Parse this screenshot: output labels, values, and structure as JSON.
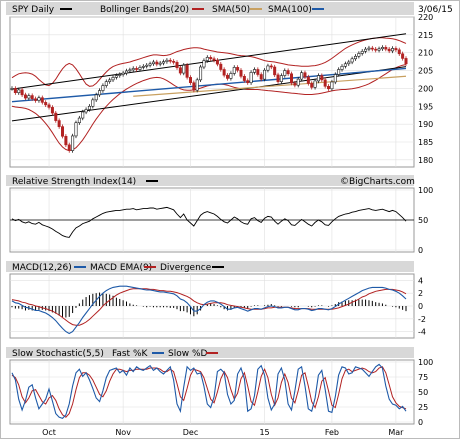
{
  "chart_data": [
    {
      "type": "line",
      "panel": "price",
      "title": "SPY Daily",
      "date": "3/06/15",
      "legend": [
        {
          "name": "Bollinger Bands(20)",
          "color": "#000000"
        },
        {
          "name": "SMA(50)",
          "color": "#b22222"
        },
        {
          "name": "SMA(100)",
          "color": "#c8a060"
        },
        {
          "name": "",
          "color": "#1e5aa8"
        }
      ],
      "ylim": [
        178,
        220
      ],
      "yticks": [
        180,
        185,
        190,
        195,
        200,
        205,
        210,
        215,
        220
      ],
      "x_labels": [
        {
          "label": "Oct",
          "i": 11
        },
        {
          "label": "Nov",
          "i": 33
        },
        {
          "label": "Dec",
          "i": 53
        },
        {
          "label": "15",
          "i": 75
        },
        {
          "label": "Feb",
          "i": 95
        },
        {
          "label": "Mar",
          "i": 114
        }
      ],
      "close": [
        200.0,
        198.8,
        199.6,
        198.2,
        197.3,
        198.0,
        197.1,
        196.6,
        197.4,
        196.1,
        195.4,
        194.7,
        193.1,
        191.0,
        189.3,
        186.6,
        184.2,
        182.6,
        186.7,
        190.4,
        191.7,
        193.4,
        194.1,
        195.0,
        196.8,
        198.2,
        199.4,
        200.8,
        201.9,
        202.4,
        203.1,
        203.6,
        203.9,
        204.3,
        204.9,
        205.2,
        205.6,
        205.3,
        205.9,
        206.2,
        206.5,
        206.9,
        207.4,
        206.8,
        207.1,
        207.5,
        207.9,
        207.6,
        207.3,
        205.8,
        204.3,
        206.5,
        203.1,
        201.6,
        199.5,
        202.4,
        206.0,
        207.8,
        208.7,
        208.3,
        207.9,
        206.8,
        205.3,
        203.7,
        202.8,
        204.2,
        205.9,
        205.1,
        203.4,
        202.2,
        201.6,
        204.5,
        205.3,
        203.9,
        202.6,
        205.1,
        206.3,
        206.0,
        203.8,
        201.9,
        203.6,
        205.0,
        204.1,
        201.5,
        200.9,
        202.6,
        204.4,
        203.2,
        201.4,
        200.3,
        202.1,
        203.6,
        202.4,
        200.6,
        199.9,
        201.8,
        203.9,
        205.3,
        206.2,
        206.9,
        207.4,
        208.3,
        209.0,
        209.8,
        210.4,
        211.0,
        211.3,
        211.0,
        210.7,
        211.1,
        211.5,
        211.0,
        210.5,
        211.2,
        210.8,
        209.7,
        208.4,
        206.9
      ],
      "bollinger_upper": [
        203.0,
        203.6,
        204.1,
        204.3,
        204.4,
        204.3,
        204.0,
        203.4,
        202.5,
        201.7,
        201.0,
        200.8,
        201.4,
        202.6,
        204.1,
        205.5,
        206.5,
        207.0,
        206.6,
        205.5,
        204.1,
        202.6,
        201.2,
        200.6,
        200.7,
        201.4,
        202.5,
        203.6,
        204.6,
        205.5,
        206.1,
        206.5,
        206.8,
        207.0,
        207.2,
        207.4,
        207.7,
        208.0,
        208.3,
        208.6,
        208.9,
        209.2,
        209.4,
        209.4,
        209.3,
        209.2,
        209.3,
        209.5,
        209.9,
        210.3,
        210.6,
        210.9,
        211.1,
        211.3,
        211.4,
        211.4,
        211.3,
        211.0,
        210.8,
        210.6,
        210.4,
        210.2,
        210.1,
        210.0,
        209.9,
        209.7,
        209.5,
        209.3,
        209.2,
        209.1,
        209.0,
        208.9,
        208.7,
        208.4,
        208.1,
        207.8,
        207.6,
        207.5,
        207.4,
        207.2,
        207.0,
        206.8,
        206.6,
        206.5,
        206.4,
        206.3,
        206.2,
        206.2,
        206.2,
        206.3,
        206.4,
        206.6,
        206.9,
        207.3,
        207.8,
        208.4,
        209.1,
        209.8,
        210.5,
        211.2,
        211.7,
        212.2,
        212.6,
        213.0,
        213.3,
        213.6,
        213.8,
        214.0,
        214.1,
        214.2,
        214.2,
        214.1,
        214.0,
        213.9,
        213.7,
        213.4,
        213.0,
        212.6
      ],
      "bollinger_lower": [
        195.0,
        194.8,
        194.7,
        194.6,
        194.4,
        194.1,
        193.6,
        193.0,
        192.2,
        191.3,
        190.2,
        189.0,
        187.6,
        186.1,
        184.7,
        183.6,
        182.9,
        182.6,
        182.8,
        183.4,
        184.4,
        185.6,
        187.0,
        188.5,
        190.0,
        191.4,
        192.7,
        193.9,
        195.0,
        196.0,
        196.9,
        197.7,
        198.5,
        199.2,
        199.8,
        200.4,
        200.9,
        201.4,
        201.8,
        202.2,
        202.5,
        202.8,
        203.0,
        203.1,
        203.0,
        202.7,
        202.2,
        201.6,
        201.0,
        200.4,
        199.9,
        199.6,
        199.5,
        199.5,
        199.6,
        199.8,
        200.1,
        200.4,
        200.7,
        200.9,
        201.1,
        201.2,
        201.2,
        201.1,
        200.9,
        200.6,
        200.3,
        200.1,
        199.9,
        199.8,
        199.7,
        199.7,
        199.7,
        199.7,
        199.6,
        199.5,
        199.4,
        199.3,
        199.2,
        199.1,
        199.0,
        198.9,
        198.8,
        198.7,
        198.6,
        198.5,
        198.4,
        198.3,
        198.3,
        198.3,
        198.4,
        198.5,
        198.7,
        198.9,
        199.1,
        199.3,
        199.5,
        199.6,
        199.7,
        199.7,
        199.8,
        199.9,
        200.1,
        200.3,
        200.6,
        200.9,
        201.3,
        201.8,
        202.3,
        202.9,
        203.5,
        204.1,
        204.7,
        205.3,
        205.8,
        206.2,
        206.5,
        206.7
      ],
      "upper_channel": [
        [
          0,
          199.8
        ],
        [
          117,
          215.3
        ]
      ],
      "lower_channel": [
        [
          0,
          190.9
        ],
        [
          117,
          206.1
        ]
      ],
      "trend_line": [
        [
          0,
          196.3
        ],
        [
          117,
          205.6
        ]
      ],
      "support_line": [
        [
          36,
          197.8
        ],
        [
          117,
          203.4
        ]
      ],
      "volume_band": {
        "ylim": [
          178,
          220
        ]
      }
    },
    {
      "type": "line",
      "panel": "rsi",
      "title": "Relative Strength Index(14)",
      "watermark": "©BigCharts.com",
      "ylim": [
        0,
        100
      ],
      "yticks": [
        0,
        50,
        100
      ],
      "reference": 50,
      "series": [
        {
          "name": "",
          "color": "#000000",
          "values": [
            52,
            49,
            51,
            47,
            45,
            47,
            44,
            43,
            46,
            42,
            40,
            38,
            35,
            31,
            28,
            24,
            22,
            21,
            30,
            37,
            40,
            44,
            46,
            48,
            52,
            55,
            58,
            61,
            63,
            64,
            65,
            66,
            66,
            67,
            68,
            68,
            69,
            67,
            68,
            69,
            69,
            70,
            70,
            68,
            69,
            70,
            71,
            69,
            67,
            60,
            54,
            60,
            50,
            45,
            40,
            49,
            58,
            62,
            64,
            62,
            60,
            56,
            51,
            47,
            45,
            50,
            55,
            52,
            47,
            44,
            43,
            52,
            54,
            49,
            46,
            53,
            56,
            55,
            48,
            43,
            48,
            52,
            49,
            42,
            41,
            46,
            51,
            47,
            43,
            40,
            46,
            50,
            47,
            42,
            41,
            47,
            52,
            56,
            58,
            60,
            61,
            63,
            64,
            66,
            67,
            68,
            69,
            67,
            66,
            67,
            68,
            66,
            64,
            66,
            64,
            59,
            54,
            48
          ]
        }
      ]
    },
    {
      "type": "bar",
      "panel": "macd",
      "title": "",
      "legend": [
        {
          "name": "MACD(12,26)",
          "color": "#1e5aa8"
        },
        {
          "name": "MACD EMA(9)",
          "color": "#b22222"
        },
        {
          "name": "Divergence",
          "color": "#000000"
        }
      ],
      "ylim": [
        -5,
        5
      ],
      "yticks": [
        -4,
        -2,
        0,
        2,
        4
      ],
      "series": [
        {
          "name": "MACD(12,26)",
          "values": [
            0.8,
            0.5,
            0.4,
            0.1,
            -0.2,
            -0.3,
            -0.5,
            -0.7,
            -0.7,
            -0.9,
            -1.1,
            -1.4,
            -1.8,
            -2.3,
            -2.9,
            -3.5,
            -4.0,
            -4.3,
            -4.0,
            -3.3,
            -2.6,
            -1.8,
            -1.1,
            -0.4,
            0.3,
            0.9,
            1.5,
            2.0,
            2.4,
            2.7,
            2.9,
            3.0,
            3.1,
            3.1,
            3.1,
            3.0,
            2.9,
            2.8,
            2.7,
            2.6,
            2.5,
            2.5,
            2.4,
            2.3,
            2.2,
            2.2,
            2.1,
            2.0,
            1.9,
            1.6,
            1.1,
            0.9,
            0.5,
            -0.1,
            -0.8,
            -0.8,
            -0.4,
            0.2,
            0.6,
            0.8,
            0.8,
            0.6,
            0.3,
            -0.1,
            -0.5,
            -0.5,
            -0.3,
            -0.2,
            -0.4,
            -0.6,
            -0.8,
            -0.6,
            -0.4,
            -0.4,
            -0.5,
            -0.3,
            -0.1,
            0.0,
            -0.1,
            -0.3,
            -0.3,
            -0.2,
            -0.2,
            -0.4,
            -0.6,
            -0.6,
            -0.4,
            -0.4,
            -0.5,
            -0.7,
            -0.6,
            -0.4,
            -0.4,
            -0.5,
            -0.6,
            -0.4,
            -0.1,
            0.3,
            0.6,
            0.9,
            1.2,
            1.5,
            1.8,
            2.1,
            2.4,
            2.6,
            2.8,
            2.9,
            2.9,
            2.9,
            2.9,
            2.8,
            2.6,
            2.5,
            2.3,
            2.0,
            1.6,
            1.1
          ]
        },
        {
          "name": "MACD EMA(9)",
          "values": [
            1.0,
            0.9,
            0.8,
            0.6,
            0.5,
            0.3,
            0.2,
            0.0,
            -0.1,
            -0.3,
            -0.4,
            -0.6,
            -0.8,
            -1.1,
            -1.4,
            -1.8,
            -2.2,
            -2.6,
            -2.9,
            -3.0,
            -3.0,
            -2.8,
            -2.5,
            -2.1,
            -1.6,
            -1.1,
            -0.6,
            0.0,
            0.5,
            0.9,
            1.3,
            1.7,
            2.0,
            2.2,
            2.4,
            2.6,
            2.7,
            2.7,
            2.7,
            2.7,
            2.7,
            2.6,
            2.6,
            2.5,
            2.4,
            2.4,
            2.3,
            2.3,
            2.2,
            2.1,
            1.9,
            1.7,
            1.5,
            1.2,
            0.8,
            0.5,
            0.3,
            0.2,
            0.3,
            0.4,
            0.5,
            0.5,
            0.5,
            0.4,
            0.2,
            0.1,
            0.0,
            -0.1,
            -0.2,
            -0.3,
            -0.4,
            -0.5,
            -0.5,
            -0.5,
            -0.5,
            -0.4,
            -0.3,
            -0.3,
            -0.2,
            -0.2,
            -0.2,
            -0.2,
            -0.2,
            -0.3,
            -0.4,
            -0.4,
            -0.4,
            -0.4,
            -0.4,
            -0.5,
            -0.5,
            -0.5,
            -0.5,
            -0.5,
            -0.5,
            -0.5,
            -0.4,
            -0.3,
            -0.1,
            0.1,
            0.3,
            0.6,
            0.8,
            1.1,
            1.4,
            1.6,
            1.9,
            2.1,
            2.3,
            2.4,
            2.5,
            2.6,
            2.6,
            2.6,
            2.5,
            2.4,
            2.2,
            1.9
          ]
        }
      ]
    },
    {
      "type": "line",
      "panel": "stochastic",
      "title": "",
      "legend": [
        {
          "name": "Slow Stochastic(5,5)",
          "color": "#000000"
        },
        {
          "name": "Fast %K",
          "color": "#1e5aa8"
        },
        {
          "name": "Slow %D",
          "color": "#b22222"
        }
      ],
      "ylim": [
        0,
        100
      ],
      "yticks": [
        0,
        25,
        50,
        75,
        100
      ],
      "x_labels": [
        {
          "label": "Oct",
          "i": 11
        },
        {
          "label": "Nov",
          "i": 33
        },
        {
          "label": "Dec",
          "i": 53
        },
        {
          "label": "15",
          "i": 75
        },
        {
          "label": "Feb",
          "i": 95
        },
        {
          "label": "Mar",
          "i": 114
        }
      ],
      "series": [
        {
          "name": "Fast %K",
          "values": [
            82,
            70,
            38,
            20,
            36,
            58,
            62,
            40,
            22,
            30,
            38,
            55,
            35,
            14,
            8,
            6,
            12,
            30,
            60,
            82,
            88,
            76,
            82,
            70,
            56,
            40,
            34,
            52,
            74,
            86,
            88,
            90,
            82,
            86,
            78,
            90,
            84,
            92,
            88,
            86,
            90,
            94,
            86,
            90,
            84,
            80,
            86,
            92,
            70,
            30,
            18,
            58,
            92,
            86,
            90,
            80,
            82,
            60,
            30,
            24,
            42,
            84,
            88,
            82,
            46,
            30,
            36,
            80,
            90,
            72,
            18,
            22,
            44,
            88,
            94,
            78,
            40,
            20,
            30,
            80,
            90,
            70,
            30,
            20,
            52,
            88,
            92,
            60,
            22,
            18,
            40,
            78,
            86,
            54,
            18,
            16,
            42,
            78,
            92,
            90,
            80,
            82,
            92,
            90,
            88,
            82,
            76,
            84,
            92,
            96,
            90,
            60,
            38,
            30,
            28,
            22,
            26,
            18
          ]
        },
        {
          "name": "Slow %D",
          "values": [
            78,
            74,
            62,
            42,
            32,
            40,
            52,
            54,
            44,
            34,
            30,
            40,
            44,
            36,
            22,
            12,
            8,
            14,
            30,
            54,
            74,
            82,
            82,
            78,
            70,
            58,
            46,
            42,
            52,
            68,
            80,
            88,
            88,
            86,
            84,
            86,
            86,
            88,
            88,
            88,
            88,
            90,
            90,
            90,
            88,
            84,
            84,
            88,
            84,
            64,
            42,
            36,
            56,
            78,
            88,
            86,
            84,
            74,
            56,
            38,
            32,
            50,
            72,
            84,
            74,
            54,
            38,
            48,
            72,
            82,
            60,
            34,
            28,
            50,
            76,
            88,
            74,
            46,
            28,
            40,
            66,
            80,
            66,
            40,
            32,
            52,
            78,
            82,
            60,
            34,
            24,
            42,
            68,
            74,
            52,
            28,
            24,
            46,
            72,
            86,
            88,
            84,
            86,
            88,
            90,
            88,
            84,
            82,
            84,
            90,
            92,
            82,
            62,
            42,
            32,
            26,
            24,
            22
          ]
        }
      ]
    }
  ]
}
